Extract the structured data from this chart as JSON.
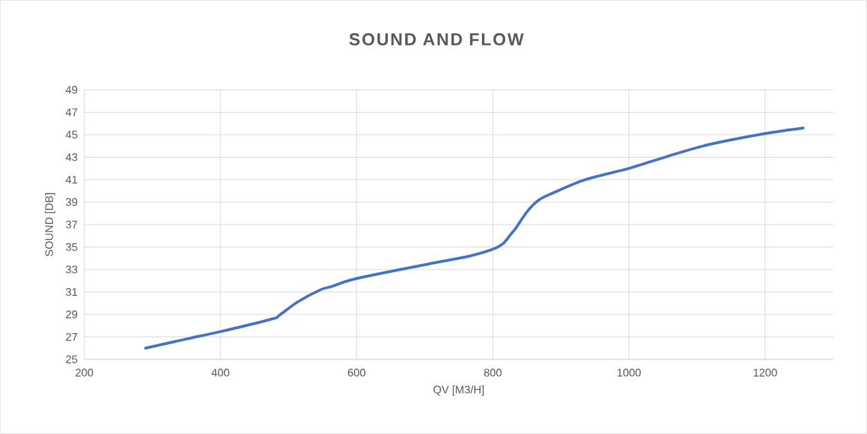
{
  "chart_data": {
    "type": "line",
    "title": "SOUND AND FLOW",
    "xlabel": "QV [M3/H]",
    "ylabel": "SOUND [DB]",
    "x": [
      290,
      353,
      400,
      476,
      486,
      513,
      547,
      564,
      600,
      698,
      766,
      800,
      815,
      826,
      834,
      851,
      868,
      888,
      936,
      1000,
      1058,
      1116,
      1200,
      1256
    ],
    "values": [
      26.0,
      26.85,
      27.47,
      28.6,
      28.9,
      30.1,
      31.2,
      31.5,
      32.2,
      33.4,
      34.2,
      34.8,
      35.3,
      36.1,
      36.7,
      38.2,
      39.2,
      39.8,
      41.0,
      42.0,
      43.1,
      44.1,
      45.1,
      45.6
    ],
    "color": "#4472c4",
    "xlim": [
      200,
      1300
    ],
    "ylim": [
      25,
      49
    ],
    "xticks": [
      200,
      400,
      600,
      800,
      1000,
      1200
    ],
    "yticks": [
      25,
      27,
      29,
      31,
      33,
      35,
      37,
      39,
      41,
      43,
      45,
      47,
      49
    ],
    "grid": true
  }
}
